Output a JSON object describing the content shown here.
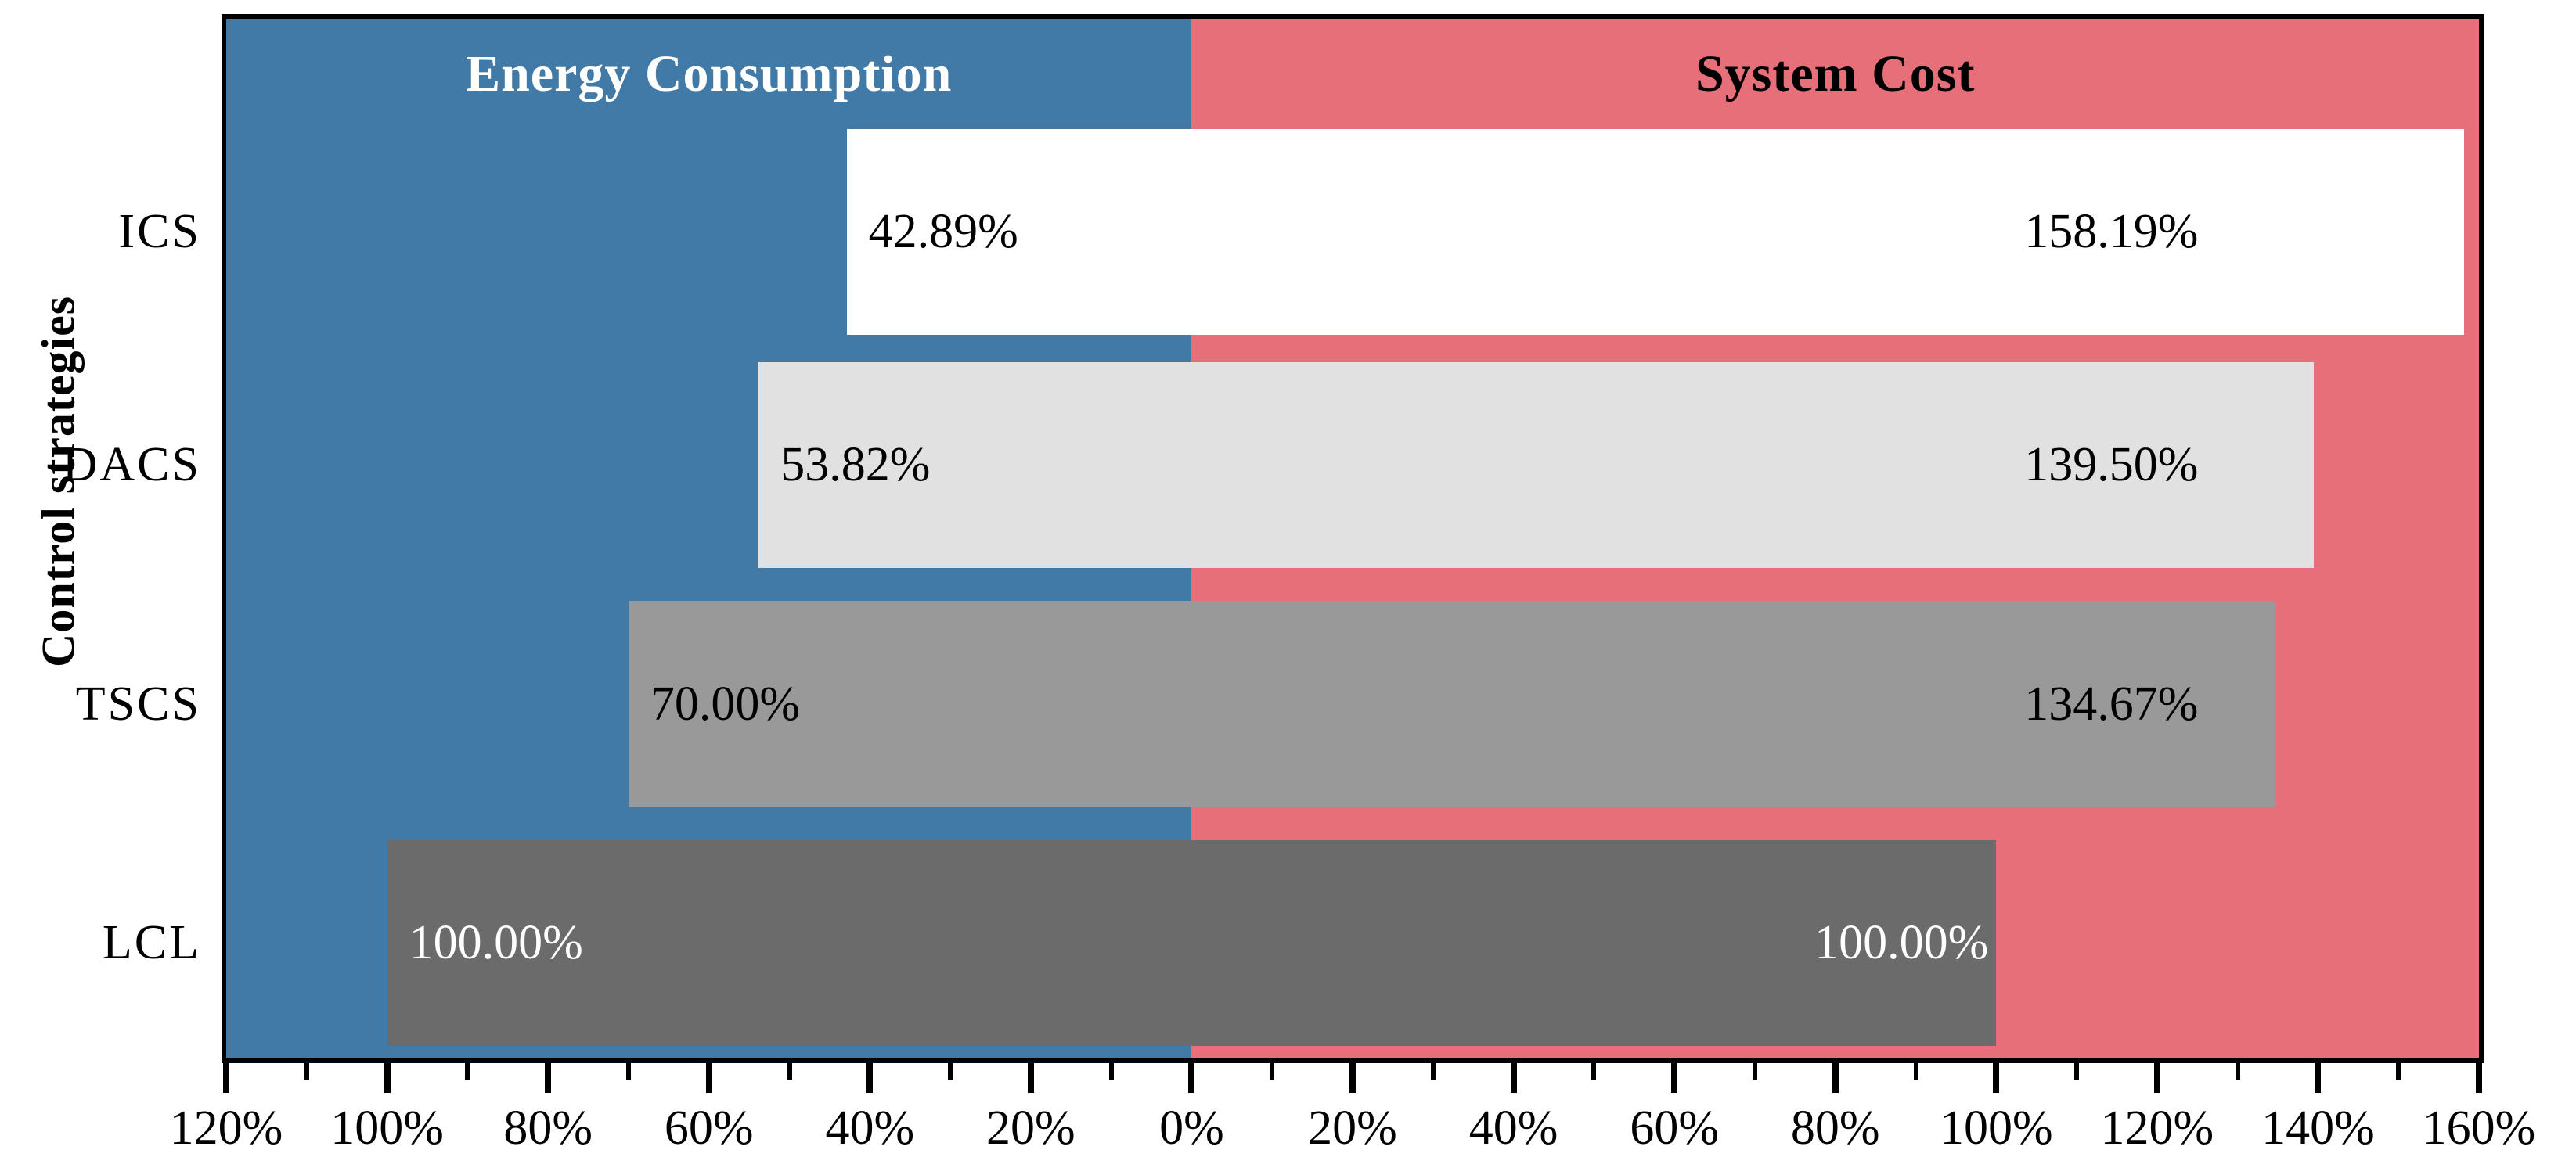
{
  "titles": {
    "left_header": "Energy Consumption",
    "right_header": "System Cost",
    "y_axis_title": "Control strategies"
  },
  "colors": {
    "left_background": "#4179A7",
    "right_background": "#E66F7A",
    "axis": "#000000",
    "left_header_text": "#FFFFFF",
    "right_header_text": "#000000"
  },
  "chart_data": {
    "type": "bar",
    "variant": "diverging-horizontal",
    "title_left": "Energy Consumption",
    "title_right": "System Cost",
    "ylabel": "Control strategies",
    "categories": [
      "ICS",
      "DACS",
      "TSCS",
      "LCL"
    ],
    "series": [
      {
        "name": "Energy Consumption",
        "side": "left",
        "values": [
          42.89,
          53.82,
          70.0,
          100.0
        ],
        "labels": [
          "42.89%",
          "53.82%",
          "70.00%",
          "100.00%"
        ]
      },
      {
        "name": "System Cost",
        "side": "right",
        "values": [
          158.19,
          139.5,
          134.67,
          100.0
        ],
        "labels": [
          "158.19%",
          "139.50%",
          "134.67%",
          "100.00%"
        ]
      }
    ],
    "bar_colors": [
      "#FFFFFF",
      "#E1E1E1",
      "#999999",
      "#6B6B6B"
    ],
    "value_label_colors": [
      "#000000",
      "#000000",
      "#000000",
      "#FFFFFF"
    ],
    "axis": {
      "min": -120,
      "max": 160,
      "major_step": 20,
      "minor_step": 10,
      "tick_labels": [
        "120%",
        "100%",
        "80%",
        "60%",
        "40%",
        "20%",
        "0%",
        "20%",
        "40%",
        "60%",
        "80%",
        "100%",
        "120%",
        "140%",
        "160%"
      ]
    },
    "grid": false,
    "legend_position": "none"
  }
}
